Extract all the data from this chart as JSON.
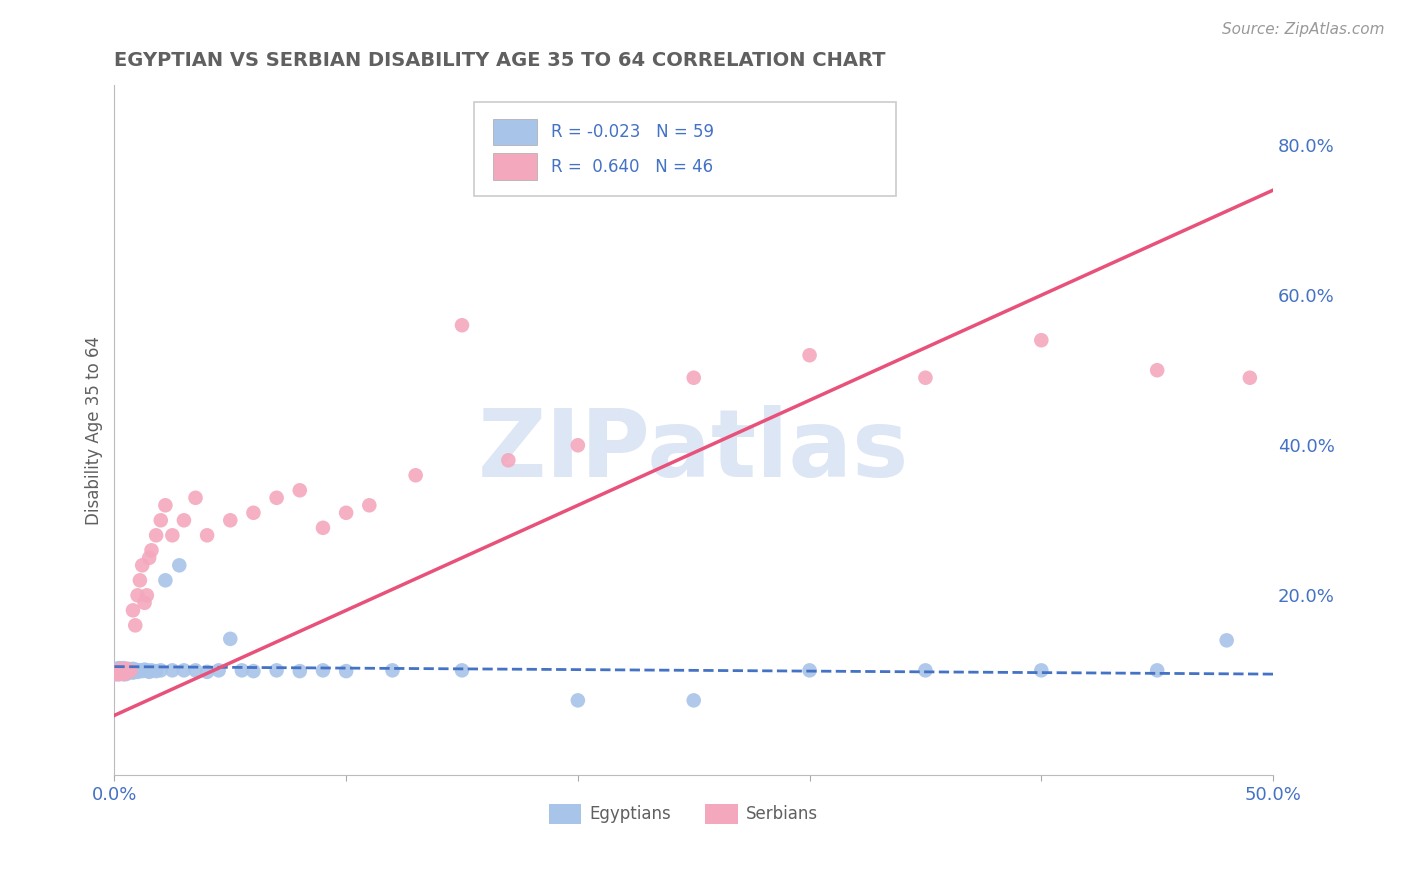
{
  "title": "EGYPTIAN VS SERBIAN DISABILITY AGE 35 TO 64 CORRELATION CHART",
  "source_text": "Source: ZipAtlas.com",
  "ylabel": "Disability Age 35 to 64",
  "xlim": [
    0.0,
    0.5
  ],
  "ylim": [
    -0.04,
    0.88
  ],
  "r_egyptian": -0.023,
  "n_egyptian": 59,
  "r_serbian": 0.64,
  "n_serbian": 46,
  "egyptian_color": "#a8c4e8",
  "serbian_color": "#f4a8be",
  "egyptian_line_color": "#4472c4",
  "serbian_line_color": "#e8527a",
  "background_color": "#ffffff",
  "grid_color": "#cccccc",
  "text_color": "#4472c4",
  "title_color": "#606060",
  "watermark_color": "#dce6f4",
  "legend_text_color": "#4472c4",
  "source_color": "#999999",
  "eg_scatter_x": [
    0.0005,
    0.001,
    0.001,
    0.001,
    0.002,
    0.002,
    0.002,
    0.002,
    0.003,
    0.003,
    0.003,
    0.004,
    0.004,
    0.004,
    0.005,
    0.005,
    0.005,
    0.006,
    0.006,
    0.006,
    0.007,
    0.007,
    0.008,
    0.008,
    0.009,
    0.009,
    0.01,
    0.01,
    0.011,
    0.012,
    0.013,
    0.014,
    0.015,
    0.016,
    0.018,
    0.02,
    0.022,
    0.025,
    0.028,
    0.03,
    0.035,
    0.04,
    0.045,
    0.05,
    0.055,
    0.06,
    0.07,
    0.08,
    0.09,
    0.1,
    0.12,
    0.15,
    0.2,
    0.25,
    0.3,
    0.35,
    0.4,
    0.45,
    0.48
  ],
  "eg_scatter_y": [
    0.095,
    0.1,
    0.098,
    0.102,
    0.095,
    0.1,
    0.098,
    0.103,
    0.097,
    0.1,
    0.102,
    0.098,
    0.095,
    0.103,
    0.097,
    0.1,
    0.095,
    0.098,
    0.102,
    0.1,
    0.098,
    0.1,
    0.097,
    0.102,
    0.099,
    0.101,
    0.1,
    0.098,
    0.1,
    0.099,
    0.101,
    0.1,
    0.098,
    0.1,
    0.099,
    0.1,
    0.22,
    0.1,
    0.24,
    0.1,
    0.1,
    0.098,
    0.1,
    0.142,
    0.1,
    0.099,
    0.1,
    0.099,
    0.1,
    0.099,
    0.1,
    0.1,
    0.06,
    0.06,
    0.1,
    0.1,
    0.1,
    0.1,
    0.14
  ],
  "sr_scatter_x": [
    0.001,
    0.001,
    0.002,
    0.002,
    0.003,
    0.003,
    0.004,
    0.004,
    0.005,
    0.005,
    0.006,
    0.006,
    0.007,
    0.008,
    0.009,
    0.01,
    0.011,
    0.012,
    0.013,
    0.014,
    0.015,
    0.016,
    0.018,
    0.02,
    0.022,
    0.025,
    0.03,
    0.035,
    0.04,
    0.05,
    0.06,
    0.07,
    0.08,
    0.09,
    0.1,
    0.11,
    0.13,
    0.15,
    0.17,
    0.2,
    0.25,
    0.3,
    0.35,
    0.4,
    0.45,
    0.49
  ],
  "sr_scatter_y": [
    0.095,
    0.1,
    0.095,
    0.1,
    0.098,
    0.102,
    0.095,
    0.1,
    0.097,
    0.102,
    0.1,
    0.098,
    0.1,
    0.18,
    0.16,
    0.2,
    0.22,
    0.24,
    0.19,
    0.2,
    0.25,
    0.26,
    0.28,
    0.3,
    0.32,
    0.28,
    0.3,
    0.33,
    0.28,
    0.3,
    0.31,
    0.33,
    0.34,
    0.29,
    0.31,
    0.32,
    0.36,
    0.56,
    0.38,
    0.4,
    0.49,
    0.52,
    0.49,
    0.54,
    0.5,
    0.49
  ],
  "eg_line_x": [
    0.0,
    0.5
  ],
  "eg_line_y": [
    0.105,
    0.095
  ],
  "sr_line_x": [
    0.0,
    0.5
  ],
  "sr_line_y": [
    0.04,
    0.74
  ]
}
